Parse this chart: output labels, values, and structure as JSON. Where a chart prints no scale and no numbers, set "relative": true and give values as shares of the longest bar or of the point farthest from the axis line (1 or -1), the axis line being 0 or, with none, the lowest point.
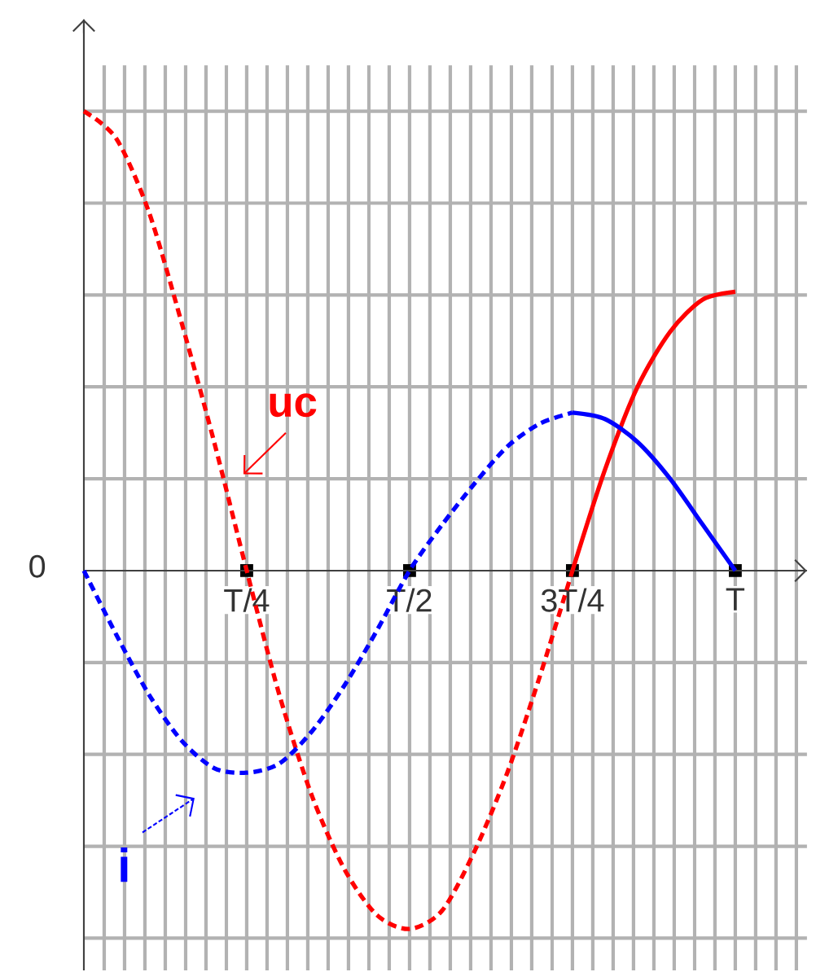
{
  "chart_data": {
    "type": "line",
    "relative": true,
    "grid": true,
    "categories": [
      null,
      null,
      null,
      null,
      null,
      "T/4",
      null,
      null,
      null,
      null,
      "T/2",
      null,
      null,
      null,
      null,
      "3T/4",
      null,
      null,
      null,
      null,
      "T"
    ],
    "series": [
      {
        "name": "uc",
        "color": "#ff0000",
        "line_style": "dashed",
        "values": [
          1.0,
          0.94,
          0.78,
          0.54,
          0.28,
          0,
          -0.27,
          -0.49,
          -0.65,
          -0.75,
          -0.78,
          -0.74,
          -0.61,
          -0.44,
          -0.23,
          0,
          null,
          null,
          null,
          null,
          null
        ]
      },
      {
        "color": "#ff0000",
        "line_style": "solid",
        "values": [
          null,
          null,
          null,
          null,
          null,
          null,
          null,
          null,
          null,
          null,
          null,
          null,
          null,
          null,
          null,
          0,
          0.22,
          0.4,
          0.52,
          0.59,
          0.607
        ]
      },
      {
        "name": "i",
        "color": "#0000ff",
        "line_style": "dashed",
        "values": [
          0,
          -0.14,
          -0.27,
          -0.37,
          -0.43,
          -0.44,
          -0.42,
          -0.35,
          -0.25,
          -0.13,
          0,
          0.1,
          0.19,
          0.27,
          0.32,
          0.344,
          null,
          null,
          null,
          null,
          null
        ]
      },
      {
        "color": "#0000ff",
        "line_style": "solid",
        "values": [
          null,
          null,
          null,
          null,
          null,
          null,
          null,
          null,
          null,
          null,
          null,
          null,
          null,
          null,
          null,
          0.344,
          0.33,
          0.28,
          0.2,
          0.1,
          0
        ]
      }
    ],
    "annotations": [
      "0"
    ]
  }
}
